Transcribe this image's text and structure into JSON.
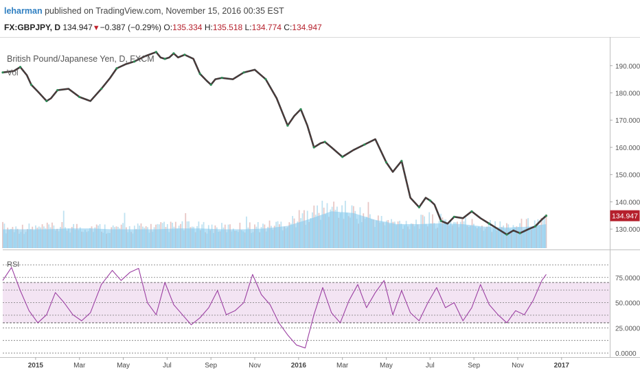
{
  "header": {
    "author": "leharman",
    "published_text": "published on TradingView.com, November 15, 2016 00:35 EST",
    "symbol": "FX:GBPJPY, D",
    "last": "134.947",
    "change": "−0.387 (−0.29%)",
    "open_label": "O:",
    "open": "135.334",
    "high_label": "H:",
    "high": "135.518",
    "low_label": "L:",
    "low": "134.774",
    "close_label": "C:",
    "close": "134.947"
  },
  "chart_data": {
    "type": "line",
    "title": "British Pound/Japanese Yen, D, FXCM",
    "subtitle": "Vol",
    "price_axis": {
      "ticks": [
        130.0,
        140.0,
        150.0,
        160.0,
        170.0,
        180.0,
        190.0
      ],
      "tick_labels": [
        "130.000",
        "140.000",
        "150.000",
        "160.000",
        "170.000",
        "180.000",
        "190.000"
      ],
      "ylim": [
        123.0,
        198.5
      ]
    },
    "last_price_label": "134.947",
    "time_axis": {
      "labels": [
        "2015",
        "Mar",
        "May",
        "Jul",
        "Sep",
        "Nov",
        "2016",
        "Mar",
        "May",
        "Jul",
        "Sep",
        "Nov",
        "2017"
      ],
      "label_x": [
        1.5,
        3.5,
        5.5,
        7.5,
        9.5,
        11.5,
        13.5,
        15.5,
        17.5,
        19.5,
        21.5,
        23.5,
        25.5
      ],
      "xlim": [
        0,
        27.7
      ]
    },
    "price_series": {
      "name": "GBPJPY",
      "x": [
        0,
        0.5,
        0.8,
        1.1,
        1.3,
        1.6,
        2.0,
        2.2,
        2.5,
        3.0,
        3.5,
        4.0,
        4.5,
        4.9,
        5.2,
        5.6,
        6.0,
        6.5,
        7.0,
        7.2,
        7.4,
        7.6,
        7.8,
        8.0,
        8.3,
        8.7,
        9.0,
        9.3,
        9.5,
        9.7,
        10.0,
        10.5,
        11.0,
        11.5,
        12.0,
        12.5,
        13.0,
        13.3,
        13.6,
        13.9,
        14.2,
        14.5,
        14.7,
        15.0,
        15.5,
        16.0,
        16.5,
        17.0,
        17.5,
        17.8,
        18.2,
        18.6,
        19.0,
        19.3,
        19.5,
        19.7,
        20.0,
        20.3,
        20.6,
        21.0,
        21.4,
        21.8,
        22.2,
        22.6,
        23.0,
        23.3,
        23.6,
        24.0,
        24.3,
        24.6,
        24.8
      ],
      "values": [
        187.5,
        188.0,
        189.5,
        186.5,
        183.0,
        180.5,
        177.0,
        178.0,
        181.0,
        181.5,
        178.5,
        177.0,
        181.5,
        185.5,
        189.0,
        190.5,
        191.5,
        193.5,
        195.0,
        193.0,
        192.5,
        193.0,
        194.5,
        193.0,
        194.0,
        192.5,
        187.0,
        184.5,
        183.0,
        185.0,
        185.5,
        185.0,
        187.5,
        188.5,
        185.0,
        178.0,
        168.0,
        171.5,
        174.0,
        168.0,
        160.0,
        161.5,
        162.0,
        160.0,
        156.5,
        159.0,
        161.0,
        163.0,
        154.5,
        151.0,
        155.0,
        141.5,
        138.0,
        141.5,
        140.5,
        139.0,
        133.0,
        132.0,
        134.5,
        134.0,
        136.5,
        134.0,
        132.0,
        130.0,
        128.0,
        129.5,
        128.5,
        130.0,
        131.0,
        133.5,
        134.9
      ]
    },
    "volume_series": {
      "name": "Vol",
      "x": [
        0,
        1,
        2,
        3,
        4,
        5,
        6,
        7,
        8,
        9,
        10,
        11,
        12,
        13,
        14,
        15,
        16,
        17,
        18,
        19,
        20,
        21,
        22,
        23,
        24,
        24.8
      ],
      "values": [
        22,
        22,
        22,
        23,
        23,
        22,
        22,
        23,
        24,
        23,
        22,
        23,
        24,
        28,
        38,
        44,
        40,
        31,
        27,
        29,
        30,
        28,
        25,
        24,
        27,
        31
      ],
      "ma_values": [
        22,
        22,
        22,
        23,
        23,
        22,
        22,
        22,
        23,
        23,
        22,
        22,
        23,
        26,
        34,
        43,
        41,
        33,
        28,
        28,
        29,
        28,
        25,
        24,
        25,
        28
      ]
    },
    "rsi": {
      "title": "RSI",
      "ylim": [
        -2,
        100
      ],
      "ticks": [
        0,
        25,
        50,
        75
      ],
      "tick_labels": [
        "0.0000",
        "25.0000",
        "50.0000",
        "75.0000"
      ],
      "upper_band": 70,
      "lower_band": 30,
      "x": [
        0,
        0.4,
        0.8,
        1.2,
        1.6,
        2.0,
        2.4,
        2.8,
        3.2,
        3.6,
        4.0,
        4.5,
        5.0,
        5.4,
        5.8,
        6.2,
        6.6,
        7.0,
        7.4,
        7.8,
        8.2,
        8.6,
        9.0,
        9.4,
        9.8,
        10.2,
        10.6,
        11.0,
        11.4,
        11.8,
        12.2,
        12.6,
        13.0,
        13.4,
        13.8,
        14.2,
        14.6,
        15.0,
        15.4,
        15.8,
        16.2,
        16.6,
        17.0,
        17.4,
        17.8,
        18.2,
        18.6,
        19.0,
        19.4,
        19.8,
        20.2,
        20.6,
        21.0,
        21.4,
        21.8,
        22.2,
        22.6,
        23.0,
        23.4,
        23.8,
        24.2,
        24.6,
        24.8
      ],
      "values": [
        72,
        85,
        62,
        42,
        30,
        38,
        60,
        50,
        38,
        32,
        40,
        68,
        82,
        72,
        80,
        84,
        50,
        38,
        70,
        48,
        38,
        28,
        35,
        45,
        62,
        38,
        42,
        50,
        78,
        58,
        48,
        30,
        18,
        8,
        5,
        38,
        65,
        40,
        30,
        52,
        68,
        45,
        60,
        72,
        38,
        62,
        40,
        32,
        50,
        65,
        45,
        50,
        32,
        45,
        68,
        48,
        38,
        30,
        42,
        38,
        52,
        72,
        78
      ]
    }
  }
}
